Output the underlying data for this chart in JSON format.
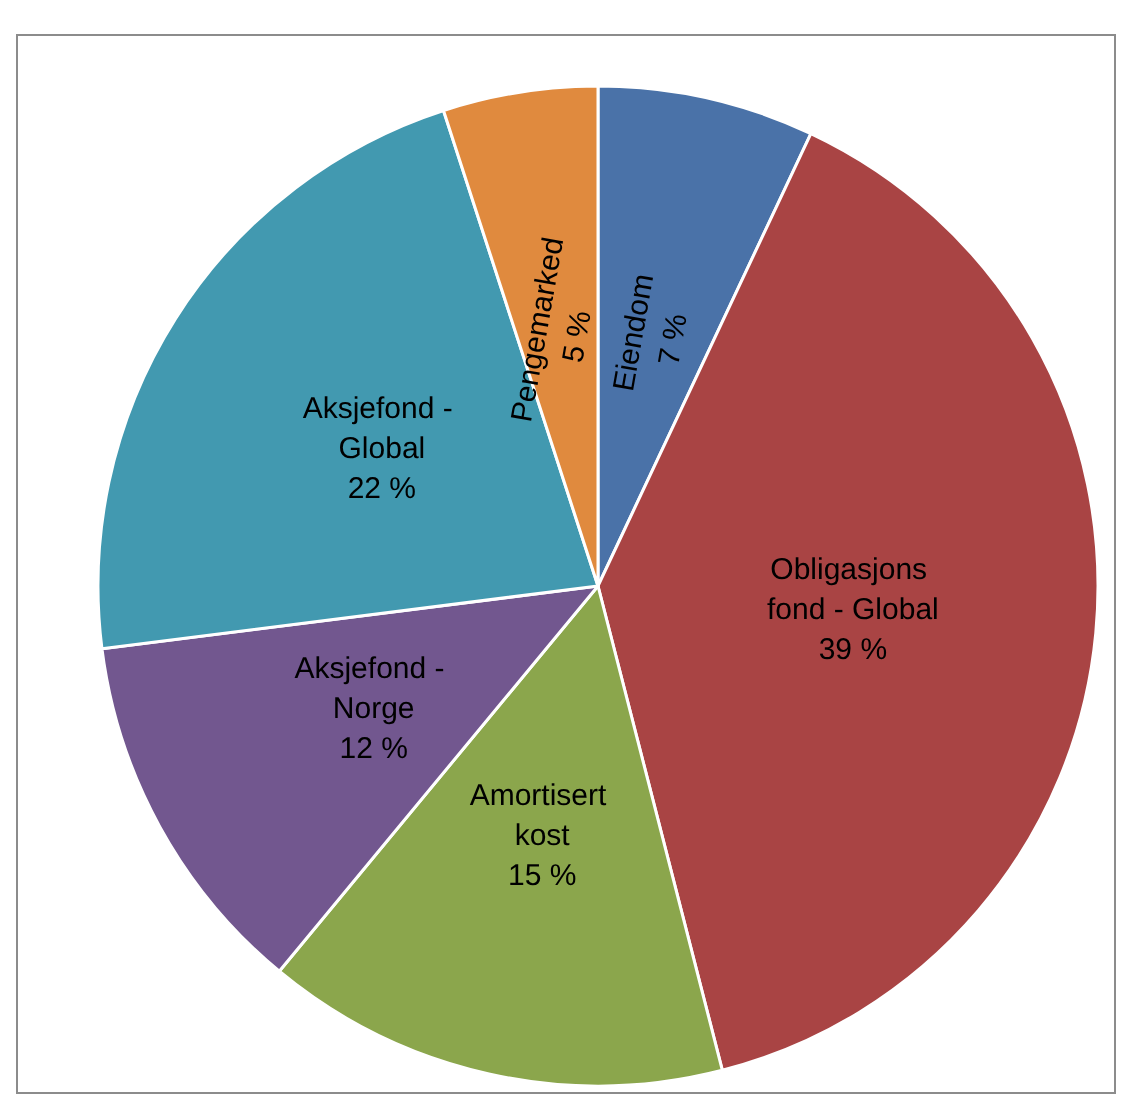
{
  "chart_data": {
    "type": "pie",
    "categories": [
      "Eiendom",
      "Obligasjons fond - Global",
      "Amortisert kost",
      "Aksjefond - Norge",
      "Aksjefond - Global",
      "Pengemarked"
    ],
    "values": [
      7,
      39,
      15,
      12,
      22,
      5
    ],
    "value_labels": [
      "7 %",
      "39 %",
      "15 %",
      "12 %",
      "22 %",
      "5 %"
    ],
    "colors": [
      "#4a72a8",
      "#a94444",
      "#8ba64c",
      "#72578f",
      "#4299b0",
      "#e08a3e"
    ],
    "legend": false
  }
}
